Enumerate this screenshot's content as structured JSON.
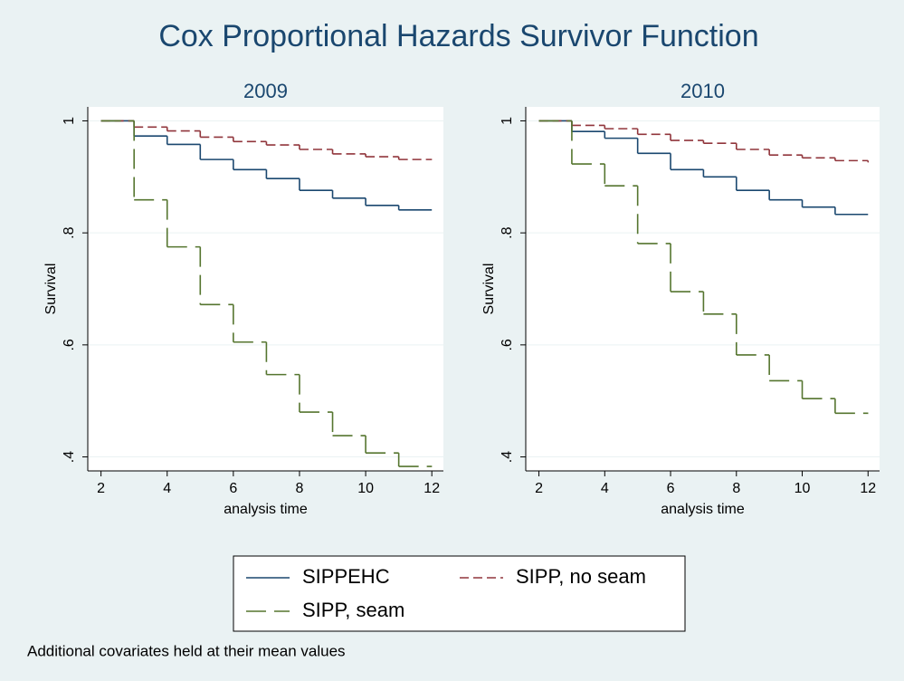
{
  "title": "Cox Proportional Hazards Survivor Function",
  "note": "Additional covariates held at their mean values",
  "chart_data": [
    {
      "type": "line",
      "step": "post",
      "title": "2009",
      "xlabel": "analysis time",
      "ylabel": "Survival",
      "x": [
        2,
        3,
        4,
        5,
        6,
        7,
        8,
        9,
        10,
        11,
        12
      ],
      "series": [
        {
          "name": "SIPPEHC",
          "color": "#1a476f",
          "line_style": "solid",
          "values": [
            1,
            0.973,
            0.958,
            0.931,
            0.913,
            0.897,
            0.876,
            0.862,
            0.849,
            0.841,
            0.841
          ]
        },
        {
          "name": "SIPP, no seam",
          "color": "#90353b",
          "line_style": "dash",
          "values": [
            1,
            0.989,
            0.982,
            0.971,
            0.963,
            0.957,
            0.949,
            0.941,
            0.936,
            0.931,
            0.931
          ]
        },
        {
          "name": "SIPP, seam",
          "color": "#55752f",
          "line_style": "longdash",
          "values": [
            1,
            0.859,
            0.775,
            0.672,
            0.605,
            0.547,
            0.48,
            0.438,
            0.407,
            0.383,
            0.383
          ]
        }
      ],
      "xlim": [
        1.6,
        12.35
      ],
      "ylim": [
        0.375,
        1.025
      ],
      "xticks": [
        2,
        4,
        6,
        8,
        10,
        12
      ],
      "yticks": [
        {
          "value": 0.4,
          "label": ".4"
        },
        {
          "value": 0.6,
          "label": ".6"
        },
        {
          "value": 0.8,
          "label": ".8"
        },
        1
      ],
      "grid": true
    },
    {
      "type": "line",
      "step": "post",
      "title": "2010",
      "xlabel": "analysis time",
      "ylabel": "Survival",
      "x": [
        2,
        3,
        4,
        5,
        6,
        7,
        8,
        9,
        10,
        11,
        12
      ],
      "series": [
        {
          "name": "SIPPEHC",
          "color": "#1a476f",
          "line_style": "solid",
          "values": [
            1,
            0.981,
            0.969,
            0.942,
            0.913,
            0.9,
            0.876,
            0.859,
            0.846,
            0.833,
            0.833
          ]
        },
        {
          "name": "SIPP, no seam",
          "color": "#90353b",
          "line_style": "dash",
          "values": [
            1,
            0.992,
            0.986,
            0.976,
            0.965,
            0.96,
            0.949,
            0.939,
            0.934,
            0.929,
            0.926
          ]
        },
        {
          "name": "SIPP, seam",
          "color": "#55752f",
          "line_style": "longdash",
          "values": [
            1,
            0.923,
            0.884,
            0.781,
            0.695,
            0.655,
            0.582,
            0.536,
            0.504,
            0.478,
            0.478
          ]
        }
      ],
      "xlim": [
        1.6,
        12.35
      ],
      "ylim": [
        0.375,
        1.025
      ],
      "xticks": [
        2,
        4,
        6,
        8,
        10,
        12
      ],
      "yticks": [
        {
          "value": 0.4,
          "label": ".4"
        },
        {
          "value": 0.6,
          "label": ".6"
        },
        {
          "value": 0.8,
          "label": ".8"
        },
        1
      ],
      "grid": true
    }
  ]
}
